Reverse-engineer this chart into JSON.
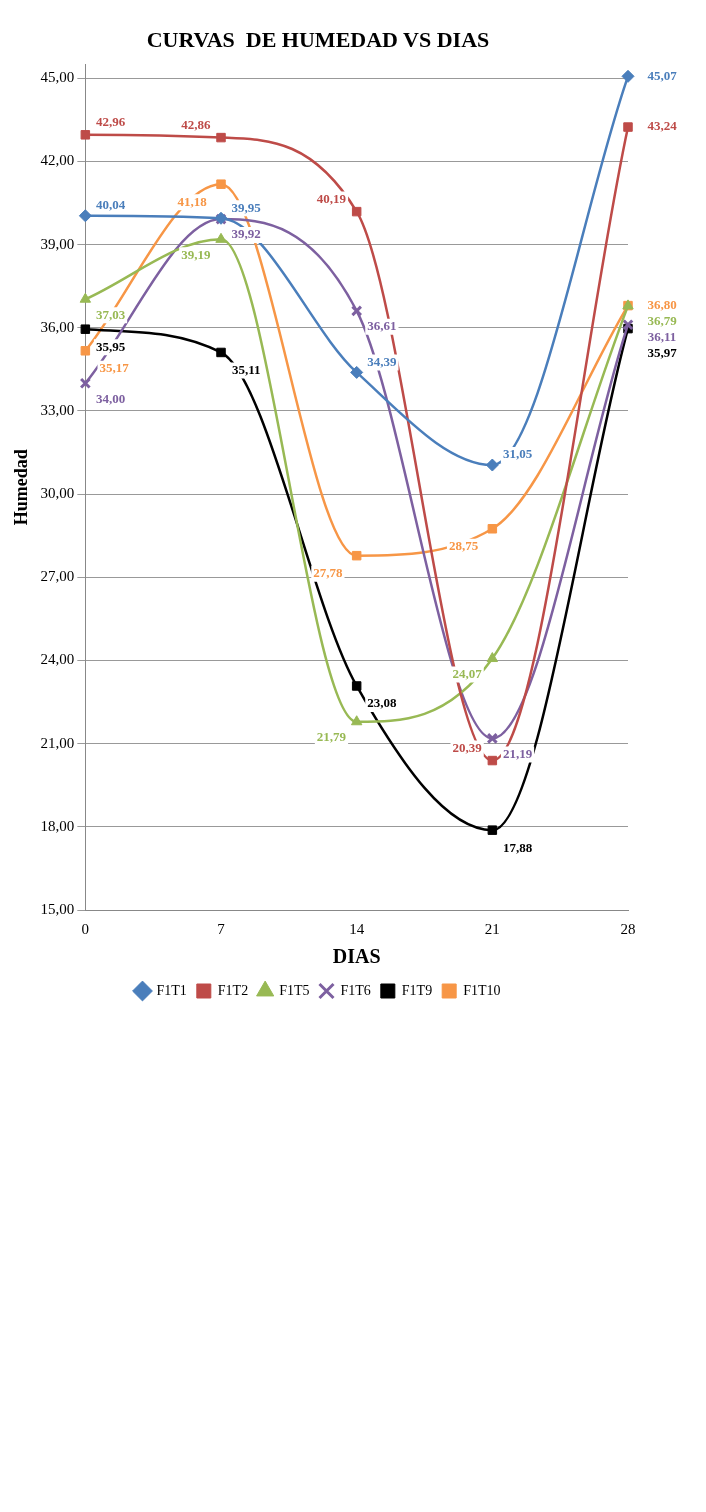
{
  "chart_data": {
    "type": "line",
    "title": "CURVAS  DE HUMEDAD VS DIAS",
    "xlabel": "DIAS",
    "ylabel": "Humedad",
    "categories": [
      "0",
      "7",
      "14",
      "21",
      "28"
    ],
    "series": [
      {
        "name": "F1T1",
        "color": "#4a7ebb",
        "marker": "diamond",
        "values": [
          40.04,
          39.95,
          34.39,
          31.05,
          45.07
        ],
        "value_labels": [
          "40,04",
          "39,95",
          "34,39",
          "31,05",
          "45,07"
        ]
      },
      {
        "name": "F1T2",
        "color": "#be4b48",
        "marker": "square",
        "values": [
          42.96,
          42.86,
          40.19,
          20.39,
          43.24
        ],
        "value_labels": [
          "42,96",
          "42,86",
          "40,19",
          "20,39",
          "43,24"
        ]
      },
      {
        "name": "F1T5",
        "color": "#98b954",
        "marker": "triangle",
        "values": [
          37.03,
          39.19,
          21.79,
          24.07,
          36.79
        ],
        "value_labels": [
          "37,03",
          "39,19",
          "21,79",
          "24,07",
          "36,79"
        ]
      },
      {
        "name": "F1T6",
        "color": "#7d60a0",
        "marker": "cross",
        "values": [
          34.0,
          39.92,
          36.61,
          21.19,
          36.11
        ],
        "value_labels": [
          "34,00",
          "39,92",
          "36,61",
          "21,19",
          "36,11"
        ]
      },
      {
        "name": "F1T9",
        "color": "#000000",
        "marker": "square",
        "values": [
          35.95,
          35.11,
          23.08,
          17.88,
          35.97
        ],
        "value_labels": [
          "35,95",
          "35,11",
          "23,08",
          "17,88",
          "35,97"
        ]
      },
      {
        "name": "F1T10",
        "color": "#f79646",
        "marker": "square",
        "values": [
          35.17,
          41.18,
          27.78,
          28.75,
          36.8
        ],
        "value_labels": [
          "35,17",
          "41,18",
          "27,78",
          "28,75",
          "36,80"
        ]
      }
    ],
    "ylim": [
      15,
      45.5
    ],
    "yticks": [
      {
        "value": 15,
        "label": "15,00"
      },
      {
        "value": 18,
        "label": "18,00"
      },
      {
        "value": 21,
        "label": "21,00"
      },
      {
        "value": 24,
        "label": "24,00"
      },
      {
        "value": 27,
        "label": "27,00"
      },
      {
        "value": 30,
        "label": "30,00"
      },
      {
        "value": 33,
        "label": "33,00"
      },
      {
        "value": 36,
        "label": "36,00"
      },
      {
        "value": 39,
        "label": "39,00"
      },
      {
        "value": 42,
        "label": "42,00"
      },
      {
        "value": 45,
        "label": "45,00"
      }
    ],
    "grid": "y",
    "legend": "bottom",
    "line_style": "solid"
  }
}
